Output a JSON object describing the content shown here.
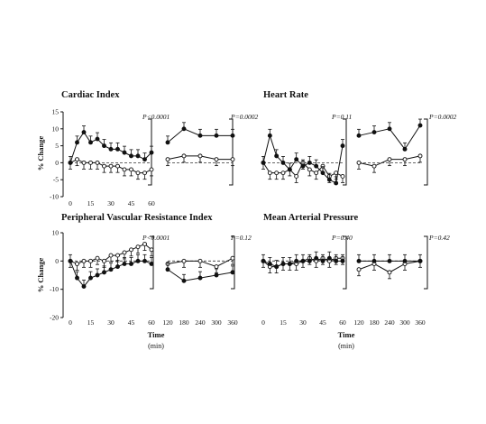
{
  "labels": {
    "ylabel": "% Change",
    "xlabel": "Time",
    "xunit": "(min)"
  },
  "chart_data": [
    {
      "type": "line",
      "title": "Cardiac Index",
      "ylim": [
        -10,
        15
      ],
      "yticks": [
        "15",
        "10",
        "5",
        "0",
        "-5",
        "-10"
      ],
      "xticks_early": [
        "0",
        "15",
        "30",
        "45",
        "60"
      ],
      "xticks_late": [],
      "p_early": "P<0.0001",
      "p_late": "P=0.0002",
      "early": {
        "x": [
          0,
          5,
          10,
          15,
          20,
          25,
          30,
          35,
          40,
          45,
          50,
          55,
          60
        ],
        "filled": [
          0,
          6,
          9,
          6,
          7,
          5,
          4,
          4,
          3,
          2,
          2,
          1,
          3
        ],
        "open": [
          0,
          1,
          0,
          0,
          0,
          -1,
          -1,
          -1,
          -2,
          -2,
          -3,
          -3,
          -2
        ]
      },
      "late": {
        "x": [
          120,
          180,
          240,
          300,
          360
        ],
        "filled": [
          6,
          10,
          8,
          8,
          8
        ],
        "open": [
          1,
          2,
          2,
          1,
          1
        ]
      }
    },
    {
      "type": "line",
      "title": "Heart Rate",
      "ylim": [
        -10,
        15
      ],
      "yticks": [],
      "xticks_early": [],
      "xticks_late": [],
      "p_early": "P=0.11",
      "p_late": "P=0.0002",
      "early": {
        "x": [
          0,
          5,
          10,
          15,
          20,
          25,
          30,
          35,
          40,
          45,
          50,
          55,
          60
        ],
        "filled": [
          0,
          8,
          2,
          0,
          -2,
          1,
          -1,
          0,
          -1,
          -3,
          -5,
          -6,
          5
        ],
        "open": [
          0,
          -3,
          -3,
          -3,
          -2,
          -4,
          0,
          -2,
          -3,
          -1,
          -4,
          -3,
          -4
        ]
      },
      "late": {
        "x": [
          120,
          180,
          240,
          300,
          360
        ],
        "filled": [
          8,
          9,
          10,
          4,
          11
        ],
        "open": [
          0,
          -1,
          1,
          1,
          2
        ]
      }
    },
    {
      "type": "line",
      "title": "Peripheral Vascular Resistance Index",
      "ylim": [
        -20,
        10
      ],
      "yticks": [
        "10",
        "0",
        "-10",
        "-20"
      ],
      "xticks_early": [
        "0",
        "15",
        "30",
        "45",
        "60"
      ],
      "xticks_late": [
        "120",
        "180",
        "240",
        "300",
        "360"
      ],
      "p_early": "P<0.0001",
      "p_late": "P=0.12",
      "early": {
        "x": [
          0,
          5,
          10,
          15,
          20,
          25,
          30,
          35,
          40,
          45,
          50,
          55,
          60
        ],
        "filled": [
          0,
          -6,
          -9,
          -6,
          -5,
          -4,
          -3,
          -2,
          -1,
          -1,
          0,
          0,
          -1
        ],
        "open": [
          0,
          -1,
          0,
          0,
          1,
          0,
          2,
          2,
          3,
          4,
          5,
          6,
          4
        ]
      },
      "late": {
        "x": [
          120,
          180,
          240,
          300,
          360
        ],
        "filled": [
          -3,
          -7,
          -6,
          -5,
          -4
        ],
        "open": [
          -1,
          0,
          0,
          -2,
          1
        ]
      }
    },
    {
      "type": "line",
      "title": "Mean Arterial Pressure",
      "ylim": [
        -20,
        10
      ],
      "yticks": [],
      "xticks_early": [
        "0",
        "15",
        "30",
        "45",
        "60"
      ],
      "xticks_late": [
        "120",
        "180",
        "240",
        "300",
        "360"
      ],
      "p_early": "P=0.40",
      "p_late": "P=0.42",
      "early": {
        "x": [
          0,
          5,
          10,
          15,
          20,
          25,
          30,
          35,
          40,
          45,
          50,
          55,
          60
        ],
        "filled": [
          0,
          -1,
          -2,
          -1,
          -1,
          0,
          0,
          0,
          1,
          0,
          1,
          0,
          0
        ],
        "open": [
          0,
          -2,
          -2,
          -1,
          -1,
          -1,
          0,
          1,
          0,
          1,
          0,
          1,
          1
        ]
      },
      "late": {
        "x": [
          120,
          180,
          240,
          300,
          360
        ],
        "filled": [
          0,
          0,
          0,
          0,
          0
        ],
        "open": [
          -3,
          -1,
          -4,
          -1,
          0
        ]
      }
    }
  ]
}
